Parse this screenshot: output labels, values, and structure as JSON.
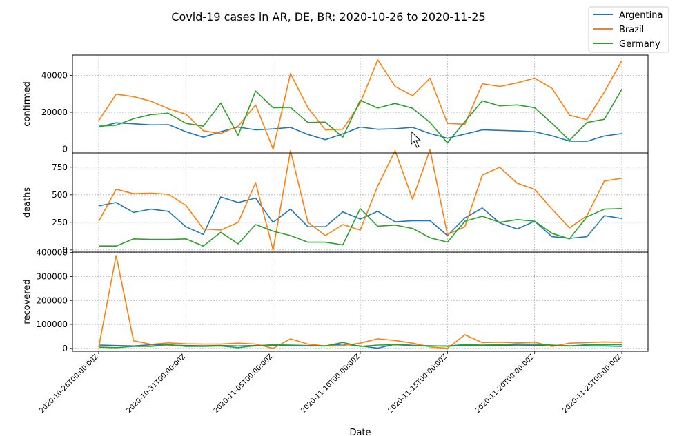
{
  "chart_data": {
    "type": "line",
    "title": "Covid-19 cases in AR, DE, BR: 2020-10-26 to 2020-11-25",
    "xlabel": "Date",
    "x_tick_labels": [
      "2020-10-26T00:00:00Z",
      "2020-10-31T00:00:00Z",
      "2020-11-05T00:00:00Z",
      "2020-11-10T00:00:00Z",
      "2020-11-15T00:00:00Z",
      "2020-11-20T00:00:00Z",
      "2020-11-25T00:00:00Z"
    ],
    "dates": [
      "2020-10-26",
      "2020-10-27",
      "2020-10-28",
      "2020-10-29",
      "2020-10-30",
      "2020-10-31",
      "2020-11-01",
      "2020-11-02",
      "2020-11-03",
      "2020-11-04",
      "2020-11-05",
      "2020-11-06",
      "2020-11-07",
      "2020-11-08",
      "2020-11-09",
      "2020-11-10",
      "2020-11-11",
      "2020-11-12",
      "2020-11-13",
      "2020-11-14",
      "2020-11-15",
      "2020-11-16",
      "2020-11-17",
      "2020-11-18",
      "2020-11-19",
      "2020-11-20",
      "2020-11-21",
      "2020-11-22",
      "2020-11-23",
      "2020-11-24",
      "2020-11-25"
    ],
    "grid": true,
    "legend": {
      "position": "top-right",
      "entries": [
        "Argentina",
        "Brazil",
        "Germany"
      ]
    },
    "colors": {
      "Argentina": "#1f77b4",
      "Brazil": "#ff7f0e",
      "Germany": "#2ca02c"
    },
    "subplots": [
      {
        "ylabel": "confirmed",
        "ylim": [
          -2000,
          51000
        ],
        "yticks": [
          0,
          20000,
          40000
        ],
        "series": [
          {
            "name": "Argentina",
            "values": [
              12000,
              14300,
              13800,
              13200,
              13300,
              9500,
              6500,
              9500,
              12000,
              10500,
              11000,
              11800,
              8000,
              5200,
              8300,
              12000,
              10800,
              11100,
              11800,
              8500,
              6000,
              8200,
              10500,
              10200,
              9900,
              9500,
              7300,
              4400,
              4300,
              7200,
              8500
            ]
          },
          {
            "name": "Brazil",
            "values": [
              15500,
              29800,
              28500,
              26000,
              22000,
              19000,
              10000,
              8500,
              12500,
              24000,
              0,
              41000,
              22500,
              10500,
              10800,
              25000,
              48500,
              34000,
              29000,
              38500,
              14000,
              13500,
              35500,
              34000,
              36000,
              38500,
              33000,
              18500,
              16000,
              31000,
              48000
            ]
          },
          {
            "name": "Germany",
            "values": [
              12500,
              13000,
              16500,
              18800,
              19500,
              14000,
              12500,
              25000,
              7500,
              31500,
              22500,
              22700,
              14500,
              14700,
              6500,
              26500,
              22300,
              24800,
              22200,
              14500,
              3500,
              15000,
              26200,
              23500,
              24000,
              22500,
              14000,
              4800,
              14500,
              16200,
              32500
            ]
          }
        ]
      },
      {
        "ylabel": "deaths",
        "ylim": [
          -20,
          880
        ],
        "yticks": [
          0,
          250,
          500,
          750
        ],
        "series": [
          {
            "name": "Argentina",
            "values": [
              400,
              430,
              340,
              370,
              350,
              210,
              140,
              480,
              430,
              470,
              250,
              370,
              210,
              210,
              345,
              280,
              350,
              255,
              265,
              265,
              130,
              290,
              380,
              245,
              190,
              260,
              120,
              105,
              120,
              310,
              285
            ]
          },
          {
            "name": "Brazil",
            "values": [
              260,
              550,
              510,
              515,
              505,
              405,
              190,
              180,
              250,
              610,
              0,
              900,
              250,
              130,
              230,
              180,
              580,
              900,
              460,
              910,
              140,
              210,
              680,
              750,
              605,
              550,
              370,
              200,
              310,
              625,
              650
            ]
          },
          {
            "name": "Germany",
            "values": [
              35,
              35,
              100,
              95,
              95,
              100,
              35,
              160,
              55,
              230,
              170,
              130,
              70,
              70,
              45,
              375,
              215,
              225,
              195,
              110,
              70,
              260,
              305,
              250,
              275,
              260,
              150,
              100,
              300,
              370,
              375
            ]
          }
        ]
      },
      {
        "ylabel": "recovered",
        "ylim": [
          -12000,
          402000
        ],
        "yticks": [
          0,
          100000,
          200000,
          300000,
          400000
        ],
        "series": [
          {
            "name": "Argentina",
            "values": [
              14000,
              12000,
              10000,
              15000,
              14000,
              12000,
              11000,
              12000,
              10000,
              12000,
              11000,
              12000,
              11000,
              11000,
              18000,
              10000,
              1000,
              17000,
              13000,
              11000,
              9000,
              12000,
              13000,
              12000,
              14000,
              13000,
              12000,
              11000,
              10000,
              10000,
              8000
            ]
          },
          {
            "name": "Brazil",
            "values": [
              5000,
              388000,
              32000,
              17000,
              23000,
              19000,
              18000,
              18000,
              22000,
              18000,
              0,
              40000,
              18000,
              10000,
              12000,
              22000,
              40000,
              33000,
              22000,
              6000,
              0,
              57000,
              24000,
              26000,
              23000,
              26000,
              8000,
              22000,
              24000,
              27000,
              25000
            ]
          },
          {
            "name": "Germany",
            "values": [
              5000,
              3000,
              8000,
              8000,
              16000,
              8000,
              8000,
              10000,
              3000,
              11000,
              15000,
              14000,
              12000,
              10000,
              25000,
              8000,
              14000,
              15000,
              12000,
              10000,
              10000,
              16000,
              14000,
              16000,
              18000,
              18000,
              14000,
              10000,
              15000,
              16000,
              15000
            ]
          }
        ]
      }
    ]
  }
}
